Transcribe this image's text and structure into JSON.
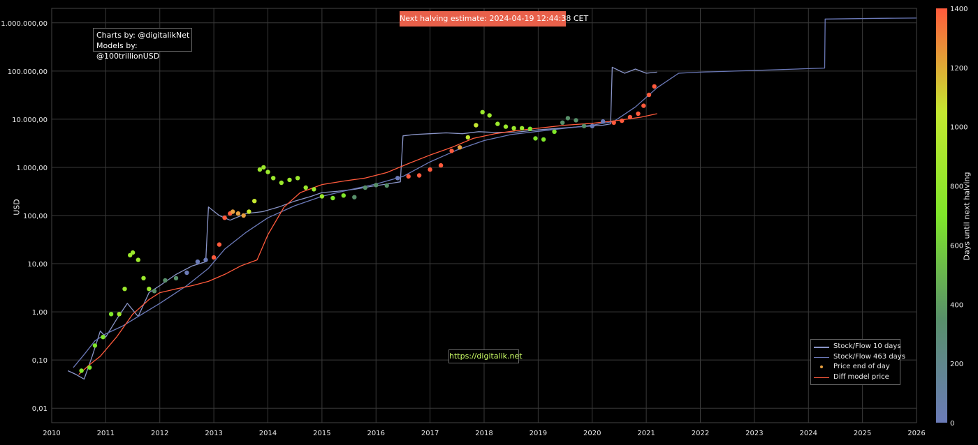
{
  "banner": {
    "text": "Next halving estimate: 2024-04-19 12:44:38 CET"
  },
  "credits": {
    "line1": "Charts by: @digitalikNet",
    "line2": "Models by: @100trillionUSD"
  },
  "url_box": {
    "text": "https://digitalik.net"
  },
  "chart_data": {
    "type": "scatter",
    "title": "",
    "xlabel": "",
    "ylabel": "USD",
    "y_scale": "log",
    "ylim": [
      0.005,
      2000000
    ],
    "xlim": [
      2010,
      2026
    ],
    "grid": true,
    "legend_position": "bottom-right",
    "x_ticks": [
      "2010",
      "2011",
      "2012",
      "2013",
      "2014",
      "2015",
      "2016",
      "2017",
      "2018",
      "2019",
      "2020",
      "2021",
      "2022",
      "2023",
      "2024",
      "2025",
      "2026"
    ],
    "y_ticks": [
      {
        "value": 0.01,
        "label": "0,01"
      },
      {
        "value": 0.1,
        "label": "0,10"
      },
      {
        "value": 1,
        "label": "1,00"
      },
      {
        "value": 10,
        "label": "10,00"
      },
      {
        "value": 100,
        "label": "100,00"
      },
      {
        "value": 1000,
        "label": "1.000,00"
      },
      {
        "value": 10000,
        "label": "10.000,00"
      },
      {
        "value": 100000,
        "label": "100.000,00"
      },
      {
        "value": 1000000,
        "label": "1.000.000,00"
      }
    ],
    "colorbar": {
      "title": "Days until next halving",
      "range": [
        0,
        1400
      ],
      "ticks": [
        "0",
        "200",
        "400",
        "600",
        "800",
        "1000",
        "1200",
        "1400"
      ],
      "colors": [
        "#6b7bb8",
        "#58906a",
        "#7fe62a",
        "#c5e830",
        "#ff5a3c"
      ]
    },
    "series": [
      {
        "name": "Stock/Flow 10 days",
        "kind": "line",
        "color": "#8a95c8",
        "x": [
          2010.3,
          2010.45,
          2010.6,
          2010.75,
          2010.9,
          2011.0,
          2011.2,
          2011.4,
          2011.6,
          2011.8,
          2012.0,
          2012.3,
          2012.6,
          2012.85,
          2012.9,
          2013.1,
          2013.3,
          2013.6,
          2013.9,
          2014.2,
          2014.5,
          2014.8,
          2015.0,
          2015.3,
          2015.6,
          2015.9,
          2016.2,
          2016.45,
          2016.5,
          2016.7,
          2017.0,
          2017.3,
          2017.6,
          2017.9,
          2018.2,
          2018.6,
          2019.0,
          2019.4,
          2019.8,
          2020.2,
          2020.34,
          2020.37,
          2020.6,
          2020.8,
          2021.0,
          2021.2
        ],
        "y": [
          0.06,
          0.05,
          0.04,
          0.12,
          0.4,
          0.3,
          0.7,
          1.5,
          0.8,
          2.5,
          3.5,
          6,
          9,
          11,
          150,
          100,
          80,
          110,
          120,
          150,
          200,
          250,
          300,
          320,
          350,
          400,
          450,
          500,
          4500,
          4800,
          5000,
          5200,
          5000,
          5500,
          5300,
          5400,
          6000,
          6500,
          7000,
          7500,
          8000,
          120000,
          90000,
          110000,
          90000,
          95000
        ]
      },
      {
        "name": "Stock/Flow 463 days",
        "kind": "line",
        "color": "#6b79b8",
        "x": [
          2010.4,
          2010.6,
          2010.8,
          2011.0,
          2011.3,
          2011.6,
          2012.0,
          2012.5,
          2012.9,
          2013.2,
          2013.6,
          2014.0,
          2014.5,
          2015.0,
          2015.5,
          2016.0,
          2016.5,
          2017.0,
          2017.5,
          2018.0,
          2018.5,
          2019.0,
          2019.5,
          2020.0,
          2020.4,
          2020.8,
          2021.2,
          2021.6,
          2022.0,
          2023.0,
          2024.0,
          2024.3,
          2024.31,
          2024.8,
          2025.3,
          2025.6,
          2026.0
        ],
        "y": [
          0.07,
          0.13,
          0.25,
          0.35,
          0.5,
          0.8,
          1.5,
          3.5,
          8,
          20,
          45,
          90,
          160,
          250,
          340,
          450,
          650,
          1300,
          2300,
          3600,
          4800,
          5600,
          6500,
          7500,
          9000,
          18000,
          45000,
          90000,
          95000,
          103000,
          112000,
          115000,
          1200000,
          1220000,
          1240000,
          1250000,
          1260000
        ]
      },
      {
        "name": "Price end of day",
        "kind": "points",
        "x": [
          2010.55,
          2010.7,
          2010.8,
          2010.95,
          2011.1,
          2011.25,
          2011.35,
          2011.45,
          2011.5,
          2011.6,
          2011.7,
          2011.8,
          2011.9,
          2012.1,
          2012.3,
          2012.5,
          2012.7,
          2012.85,
          2013.0,
          2013.1,
          2013.2,
          2013.3,
          2013.35,
          2013.45,
          2013.55,
          2013.65,
          2013.75,
          2013.85,
          2013.92,
          2014.0,
          2014.1,
          2014.25,
          2014.4,
          2014.55,
          2014.7,
          2014.85,
          2015.0,
          2015.2,
          2015.4,
          2015.6,
          2015.8,
          2016.0,
          2016.2,
          2016.4,
          2016.6,
          2016.8,
          2017.0,
          2017.2,
          2017.4,
          2017.55,
          2017.7,
          2017.85,
          2017.97,
          2018.1,
          2018.25,
          2018.4,
          2018.55,
          2018.7,
          2018.85,
          2018.95,
          2019.1,
          2019.3,
          2019.45,
          2019.55,
          2019.7,
          2019.85,
          2020.0,
          2020.2,
          2020.4,
          2020.55,
          2020.7,
          2020.85,
          2020.95,
          2021.05,
          2021.15
        ],
        "y": [
          0.06,
          0.07,
          0.2,
          0.3,
          0.9,
          0.9,
          3,
          15,
          17,
          12,
          5,
          3,
          2.7,
          4.5,
          5,
          6.5,
          11,
          12,
          13.5,
          25,
          90,
          110,
          120,
          110,
          100,
          120,
          200,
          900,
          1000,
          800,
          600,
          480,
          550,
          600,
          380,
          350,
          250,
          230,
          260,
          240,
          380,
          430,
          420,
          600,
          650,
          680,
          900,
          1100,
          2200,
          2600,
          4200,
          7500,
          14000,
          12000,
          8000,
          7000,
          6500,
          6500,
          6300,
          4000,
          3800,
          5500,
          8500,
          10500,
          9500,
          7200,
          7200,
          9000,
          8500,
          9300,
          11000,
          13000,
          19000,
          32000,
          48000
        ],
        "colors": [
          "#7fe62a",
          "#7fe62a",
          "#7fe62a",
          "#7fe62a",
          "#7fe62a",
          "#9be82c",
          "#9be82c",
          "#9be82c",
          "#9be82c",
          "#9be82c",
          "#9be82c",
          "#9be82c",
          "#58906a",
          "#58906a",
          "#58906a",
          "#6b7bb8",
          "#6b7bb8",
          "#6b7bb8",
          "#ff5a3c",
          "#ff5a3c",
          "#ff5a3c",
          "#ff5a3c",
          "#e8a040",
          "#e8a040",
          "#e8a040",
          "#c5e830",
          "#c5e830",
          "#9be82c",
          "#9be82c",
          "#9be82c",
          "#9be82c",
          "#9be82c",
          "#9be82c",
          "#9be82c",
          "#9be82c",
          "#9be82c",
          "#9be82c",
          "#7fe62a",
          "#7fe62a",
          "#58906a",
          "#58906a",
          "#58906a",
          "#58906a",
          "#6b7bb8",
          "#ff5a3c",
          "#ff5a3c",
          "#ff5a3c",
          "#ff5a3c",
          "#ff5a3c",
          "#e8a040",
          "#c5e830",
          "#c5e830",
          "#9be82c",
          "#9be82c",
          "#9be82c",
          "#9be82c",
          "#9be82c",
          "#9be82c",
          "#7fe62a",
          "#7fe62a",
          "#7fe62a",
          "#7fe62a",
          "#58906a",
          "#58906a",
          "#58906a",
          "#58906a",
          "#6b7bb8",
          "#6b7bb8",
          "#ff5a3c",
          "#ff5a3c",
          "#ff5a3c",
          "#ff5a3c",
          "#ff5a3c",
          "#ff5a3c",
          "#ff5a3c"
        ]
      },
      {
        "name": "Diff model price",
        "kind": "line",
        "color": "#ff5a3c",
        "x": [
          2010.5,
          2010.7,
          2010.9,
          2011.2,
          2011.5,
          2011.8,
          2012.0,
          2012.3,
          2012.6,
          2012.9,
          2013.2,
          2013.5,
          2013.8,
          2014.0,
          2014.3,
          2014.6,
          2015.0,
          2015.4,
          2015.8,
          2016.2,
          2016.6,
          2017.0,
          2017.4,
          2017.8,
          2018.2,
          2018.6,
          2019.0,
          2019.5,
          2020.0,
          2020.5,
          2020.9,
          2021.2
        ],
        "y": [
          0.05,
          0.08,
          0.12,
          0.3,
          0.9,
          1.8,
          2.5,
          3.0,
          3.5,
          4.3,
          6,
          9,
          12,
          40,
          150,
          300,
          440,
          520,
          600,
          780,
          1200,
          1800,
          2600,
          4000,
          5000,
          5800,
          6500,
          7500,
          8200,
          9500,
          11000,
          13000
        ]
      }
    ]
  }
}
